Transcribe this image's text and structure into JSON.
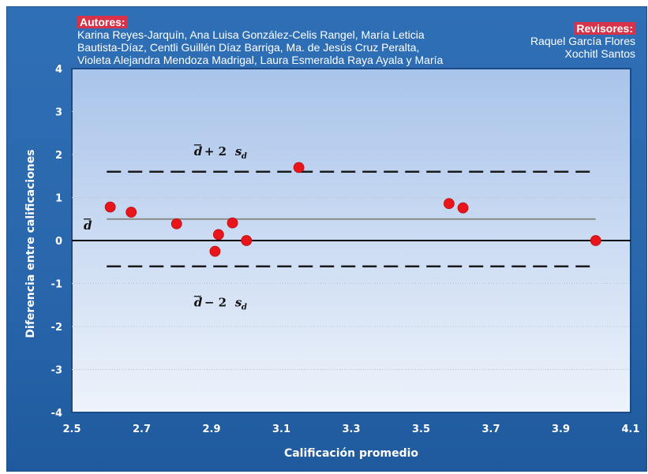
{
  "credits": {
    "authors_heading": "Autores:",
    "authors_lines": [
      "Karina Reyes-Jarquín, Ana Luisa González-Celis Rangel, María Leticia",
      "Bautista-Díaz, Centli Guillén Díaz Barriga, Ma. de Jesús Cruz Peralta,",
      "Violeta Alejandra Mendoza Madrigal, Laura Esmeralda Raya Ayala y María"
    ],
    "reviewers_heading": "Revisores:",
    "reviewers": [
      "Raquel García Flores",
      "Xochitl Santos"
    ]
  },
  "colors": {
    "frame": "#2a67ad",
    "plot_top": "#a9c4ea",
    "plot_bottom": "#eef3fb",
    "points": "#e8161b",
    "limit_lines": "#1a1a1a",
    "mean_line": "#8a8a8a"
  },
  "chart_data": {
    "type": "scatter",
    "title": "",
    "xlabel": "Calificación promedio",
    "ylabel": "Diferencia entre calificaciones",
    "xlim": [
      2.5,
      4.1
    ],
    "ylim": [
      -4,
      4
    ],
    "x_ticks": [
      2.5,
      2.7,
      2.9,
      3.1,
      3.3,
      3.5,
      3.7,
      3.9,
      4.1
    ],
    "x_tick_labels": [
      "2.5",
      "2.7",
      "2.9",
      "3.1",
      "3.3",
      "3.5",
      "3.7",
      "3.9",
      "4.1"
    ],
    "y_ticks": [
      -4,
      -3,
      -2,
      -1,
      0,
      1,
      2,
      3,
      4
    ],
    "y_tick_labels": [
      "-4",
      "-3",
      "-2",
      "-1",
      "0",
      "1",
      "2",
      "3",
      "4"
    ],
    "grid": true,
    "legend": "none",
    "series": [
      {
        "x": [
          2.61,
          2.67,
          2.8,
          2.91,
          2.92,
          2.96,
          3.0,
          3.15,
          3.58,
          3.62,
          4.0
        ],
        "values": [
          0.78,
          0.66,
          0.39,
          -0.25,
          0.14,
          0.41,
          0.0,
          1.7,
          0.86,
          0.76,
          0.0
        ]
      }
    ],
    "reference_lines": [
      {
        "kind": "mean",
        "y": 0.5,
        "x_range": [
          2.6,
          4.0
        ],
        "style": "solid",
        "label": "d̄"
      },
      {
        "kind": "upper_limit",
        "y": 1.6,
        "x_range": [
          2.6,
          4.0
        ],
        "style": "dashed",
        "label": "d̄ + 2s_d"
      },
      {
        "kind": "lower_limit",
        "y": -0.6,
        "x_range": [
          2.6,
          4.0
        ],
        "style": "dashed",
        "label": "d̄ − 2s_d"
      },
      {
        "kind": "zero",
        "y": 0,
        "x_range": [
          2.5,
          4.1
        ],
        "style": "solid"
      }
    ]
  }
}
